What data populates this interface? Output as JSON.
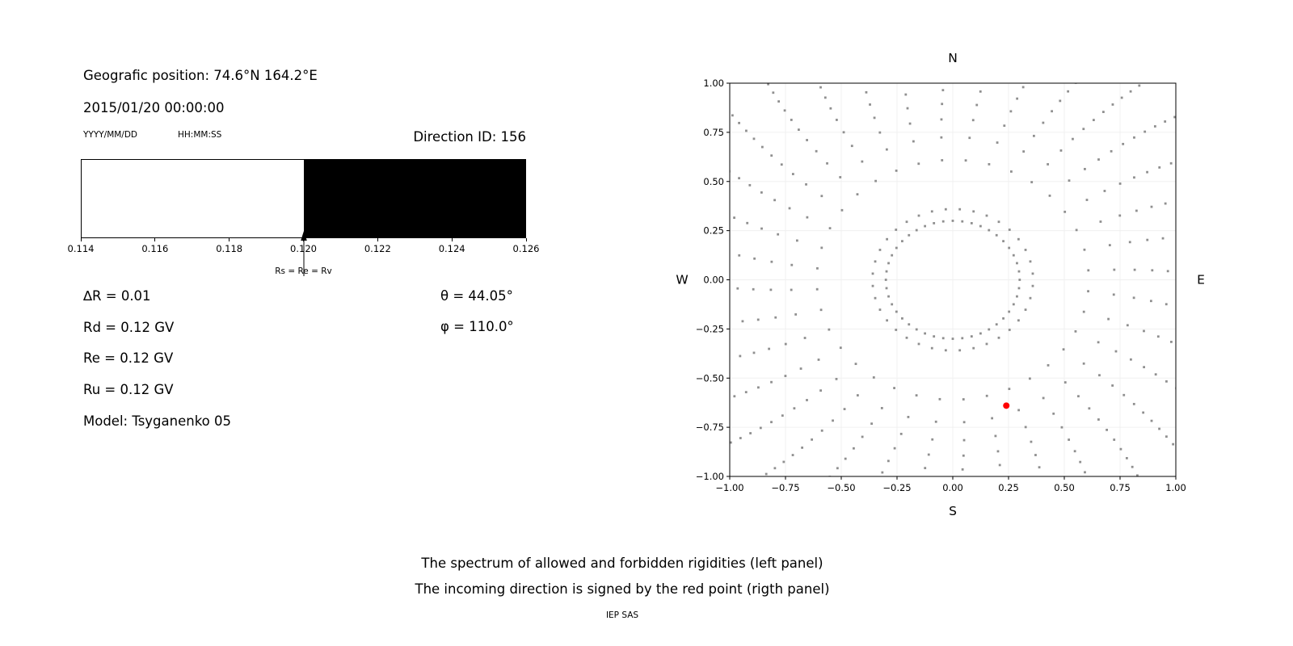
{
  "header": {
    "geo_position": "Geografic position: 74.6°N 164.2°E",
    "datetime": "2015/01/20 00:00:00",
    "date_format_label": "YYYY/MM/DD",
    "time_format_label": "HH:MM:SS",
    "direction_id_label": "Direction ID: 156"
  },
  "params": {
    "delta_r": "∆R = 0.01",
    "rd": "Rd = 0.12 GV",
    "re": "Re = 0.12 GV",
    "ru": "Ru = 0.12 GV",
    "model": "Model: Tsyganenko 05",
    "theta": "θ = 44.05°",
    "phi": "φ = 110.0°"
  },
  "captions": {
    "line1": "The spectrum of allowed and forbidden rigidities (left panel)",
    "line2": "The incoming direction is signed by the red point (rigth panel)",
    "credit": "IEP SAS"
  },
  "chart_data": [
    {
      "id": "rigidity-spectrum",
      "type": "bar",
      "title": "",
      "x_range": [
        0.114,
        0.126
      ],
      "x_ticks": [
        "0.114",
        "0.116",
        "0.118",
        "0.120",
        "0.122",
        "0.124",
        "0.126"
      ],
      "allowed_region": {
        "from": 0.114,
        "to": 0.12,
        "color": "#ffffff"
      },
      "forbidden_region": {
        "from": 0.12,
        "to": 0.126,
        "color": "#000000"
      },
      "marker": {
        "x": 0.12,
        "label": "Rs = Re = Rv"
      }
    },
    {
      "id": "incoming-direction-map",
      "type": "scatter",
      "xlim": [
        -1,
        1
      ],
      "ylim": [
        -1,
        1
      ],
      "tick_values": [
        -1,
        -0.75,
        -0.5,
        -0.25,
        0,
        0.25,
        0.5,
        0.75,
        1
      ],
      "x_tick_labels": [
        "−1.00",
        "−0.75",
        "−0.50",
        "−0.25",
        "0.00",
        "0.25",
        "0.50",
        "0.75",
        "1.00"
      ],
      "y_tick_labels": [
        "−1.00",
        "−0.75",
        "−0.50",
        "−0.25",
        "0.00",
        "0.25",
        "0.50",
        "0.75",
        "1.00"
      ],
      "compass": {
        "north": "N",
        "east": "E",
        "south": "S",
        "west": "W"
      },
      "grid": true,
      "dot_color": "#8f8f8f",
      "pattern_note": "radial spokes of small gray dots around an empty center with an inner dotted ring",
      "spokes": {
        "count": 36,
        "offset_deg": 5,
        "dots_per_spoke": 13,
        "r_min": 0.36,
        "r_max": 1.34,
        "spacing_power": 0.55,
        "curvature_rad": -0.1
      },
      "inner_ring": {
        "radius": 0.3,
        "dots": 44
      },
      "red_point": {
        "x": 0.24,
        "y": -0.64,
        "color": "#ff0000"
      }
    }
  ]
}
